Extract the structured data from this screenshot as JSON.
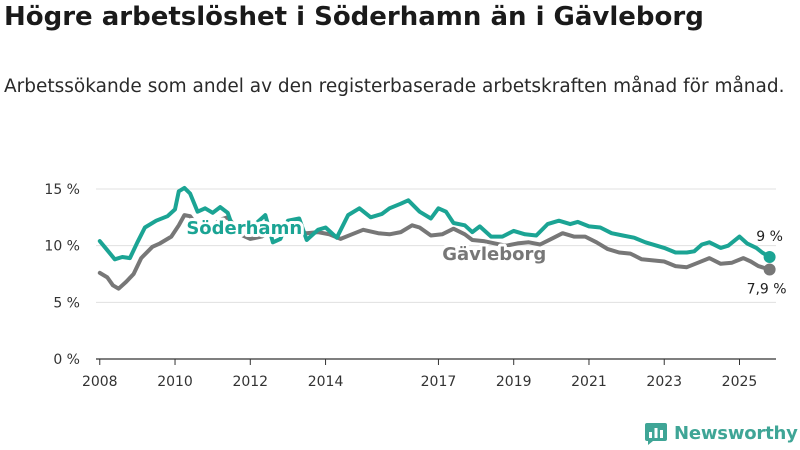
{
  "title": "Högre arbetslöshet i Söderhamn än i Gävleborg",
  "subtitle": "Arbetssökande som andel av den registerbaserade arbetskraften månad för månad.",
  "brand": {
    "name": "Newsworthy",
    "color": "#3fa596"
  },
  "colors": {
    "soderhamn": "#1ba494",
    "gavleborg": "#777777",
    "grid": "#e0e0e0",
    "axis": "#333333"
  },
  "chart_data": {
    "type": "line",
    "title": "Högre arbetslöshet i Söderhamn än i Gävleborg",
    "xlabel": "",
    "ylabel": "",
    "xlim": [
      2007.9,
      2025.97
    ],
    "ylim": [
      0,
      15
    ],
    "grid": true,
    "y_ticks": [
      {
        "value": 0,
        "label": "0 %"
      },
      {
        "value": 5,
        "label": "5 %"
      },
      {
        "value": 10,
        "label": "10 %"
      },
      {
        "value": 15,
        "label": "15 %"
      }
    ],
    "x_ticks": [
      {
        "value": 2008,
        "label": "2008"
      },
      {
        "value": 2010,
        "label": "2010"
      },
      {
        "value": 2012,
        "label": "2012"
      },
      {
        "value": 2014,
        "label": "2014"
      },
      {
        "value": 2017,
        "label": "2017"
      },
      {
        "value": 2019,
        "label": "2019"
      },
      {
        "value": 2021,
        "label": "2021"
      },
      {
        "value": 2023,
        "label": "2023"
      },
      {
        "value": 2025,
        "label": "2025"
      }
    ],
    "series": [
      {
        "name": "Söderhamn",
        "label": "Söderhamn",
        "end_label": "9 %",
        "end_value": 9.0,
        "points": [
          [
            2008.0,
            10.4
          ],
          [
            2008.2,
            9.6
          ],
          [
            2008.4,
            8.8
          ],
          [
            2008.6,
            9.0
          ],
          [
            2008.8,
            8.9
          ],
          [
            2009.0,
            10.3
          ],
          [
            2009.2,
            11.6
          ],
          [
            2009.5,
            12.2
          ],
          [
            2009.8,
            12.6
          ],
          [
            2010.0,
            13.2
          ],
          [
            2010.1,
            14.8
          ],
          [
            2010.25,
            15.1
          ],
          [
            2010.4,
            14.6
          ],
          [
            2010.6,
            13.0
          ],
          [
            2010.8,
            13.3
          ],
          [
            2011.0,
            12.9
          ],
          [
            2011.2,
            13.4
          ],
          [
            2011.4,
            12.9
          ],
          [
            2011.6,
            11.0
          ],
          [
            2011.8,
            11.2
          ],
          [
            2012.0,
            11.1
          ],
          [
            2012.2,
            12.1
          ],
          [
            2012.4,
            12.7
          ],
          [
            2012.6,
            10.3
          ],
          [
            2012.8,
            10.6
          ],
          [
            2013.0,
            12.2
          ],
          [
            2013.3,
            12.4
          ],
          [
            2013.5,
            10.5
          ],
          [
            2013.8,
            11.4
          ],
          [
            2014.0,
            11.6
          ],
          [
            2014.3,
            10.7
          ],
          [
            2014.6,
            12.7
          ],
          [
            2014.9,
            13.3
          ],
          [
            2015.2,
            12.5
          ],
          [
            2015.5,
            12.8
          ],
          [
            2015.7,
            13.3
          ],
          [
            2016.0,
            13.7
          ],
          [
            2016.2,
            14.0
          ],
          [
            2016.5,
            13.0
          ],
          [
            2016.8,
            12.4
          ],
          [
            2017.0,
            13.3
          ],
          [
            2017.2,
            13.0
          ],
          [
            2017.4,
            12.0
          ],
          [
            2017.7,
            11.8
          ],
          [
            2017.9,
            11.2
          ],
          [
            2018.1,
            11.7
          ],
          [
            2018.4,
            10.8
          ],
          [
            2018.7,
            10.8
          ],
          [
            2019.0,
            11.3
          ],
          [
            2019.3,
            11.0
          ],
          [
            2019.6,
            10.9
          ],
          [
            2019.9,
            11.9
          ],
          [
            2020.2,
            12.2
          ],
          [
            2020.5,
            11.9
          ],
          [
            2020.7,
            12.1
          ],
          [
            2021.0,
            11.7
          ],
          [
            2021.3,
            11.6
          ],
          [
            2021.6,
            11.1
          ],
          [
            2021.9,
            10.9
          ],
          [
            2022.2,
            10.7
          ],
          [
            2022.5,
            10.3
          ],
          [
            2022.8,
            10.0
          ],
          [
            2023.0,
            9.8
          ],
          [
            2023.3,
            9.4
          ],
          [
            2023.6,
            9.4
          ],
          [
            2023.8,
            9.5
          ],
          [
            2024.0,
            10.1
          ],
          [
            2024.2,
            10.3
          ],
          [
            2024.5,
            9.8
          ],
          [
            2024.7,
            10.0
          ],
          [
            2025.0,
            10.8
          ],
          [
            2025.2,
            10.2
          ],
          [
            2025.45,
            9.8
          ],
          [
            2025.6,
            9.4
          ],
          [
            2025.8,
            9.0
          ]
        ]
      },
      {
        "name": "Gävleborg",
        "label": "Gävleborg",
        "end_label": "7,9 %",
        "end_value": 7.9,
        "points": [
          [
            2008.0,
            7.6
          ],
          [
            2008.2,
            7.2
          ],
          [
            2008.35,
            6.5
          ],
          [
            2008.5,
            6.2
          ],
          [
            2008.7,
            6.8
          ],
          [
            2008.9,
            7.5
          ],
          [
            2009.1,
            8.9
          ],
          [
            2009.4,
            9.9
          ],
          [
            2009.6,
            10.2
          ],
          [
            2009.9,
            10.8
          ],
          [
            2010.1,
            11.8
          ],
          [
            2010.25,
            12.7
          ],
          [
            2010.4,
            12.6
          ],
          [
            2010.6,
            11.7
          ],
          [
            2010.8,
            11.6
          ],
          [
            2011.0,
            11.7
          ],
          [
            2011.2,
            12.3
          ],
          [
            2011.4,
            12.5
          ],
          [
            2011.6,
            11.7
          ],
          [
            2011.8,
            10.9
          ],
          [
            2012.0,
            10.6
          ],
          [
            2012.3,
            10.8
          ],
          [
            2012.6,
            11.5
          ],
          [
            2012.9,
            11.0
          ],
          [
            2013.2,
            11.2
          ],
          [
            2013.5,
            11.1
          ],
          [
            2013.8,
            11.2
          ],
          [
            2014.1,
            11.0
          ],
          [
            2014.4,
            10.6
          ],
          [
            2014.7,
            11.0
          ],
          [
            2015.0,
            11.4
          ],
          [
            2015.4,
            11.1
          ],
          [
            2015.7,
            11.0
          ],
          [
            2016.0,
            11.2
          ],
          [
            2016.3,
            11.8
          ],
          [
            2016.5,
            11.6
          ],
          [
            2016.8,
            10.9
          ],
          [
            2017.1,
            11.0
          ],
          [
            2017.4,
            11.5
          ],
          [
            2017.7,
            11.0
          ],
          [
            2017.9,
            10.5
          ],
          [
            2018.2,
            10.4
          ],
          [
            2018.5,
            10.2
          ],
          [
            2018.8,
            10.0
          ],
          [
            2019.1,
            10.2
          ],
          [
            2019.4,
            10.3
          ],
          [
            2019.7,
            10.1
          ],
          [
            2020.0,
            10.6
          ],
          [
            2020.3,
            11.1
          ],
          [
            2020.6,
            10.8
          ],
          [
            2020.9,
            10.8
          ],
          [
            2021.2,
            10.3
          ],
          [
            2021.5,
            9.7
          ],
          [
            2021.8,
            9.4
          ],
          [
            2022.1,
            9.3
          ],
          [
            2022.4,
            8.8
          ],
          [
            2022.7,
            8.7
          ],
          [
            2023.0,
            8.6
          ],
          [
            2023.3,
            8.2
          ],
          [
            2023.6,
            8.1
          ],
          [
            2023.9,
            8.5
          ],
          [
            2024.2,
            8.9
          ],
          [
            2024.5,
            8.4
          ],
          [
            2024.8,
            8.5
          ],
          [
            2025.1,
            8.9
          ],
          [
            2025.3,
            8.6
          ],
          [
            2025.5,
            8.2
          ],
          [
            2025.8,
            7.9
          ]
        ]
      }
    ]
  }
}
